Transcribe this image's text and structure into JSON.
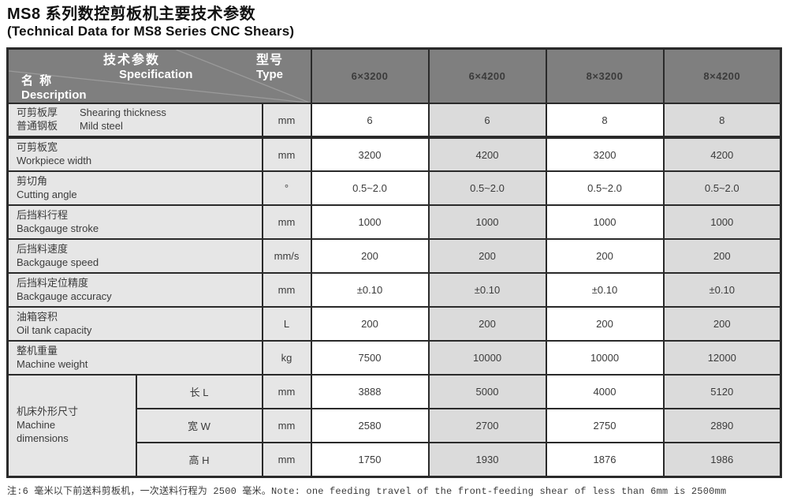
{
  "title": {
    "zh": "MS8 系列数控剪板机主要技术参数",
    "en": "(Technical Data for MS8 Series CNC Shears)"
  },
  "table": {
    "header": {
      "spec_zh": "技术参数",
      "spec_en": "Specification",
      "name_zh": "名 称",
      "name_en": "Description",
      "type_zh": "型号",
      "type_en": "Type",
      "models": [
        "6×3200",
        "6×4200",
        "8×3200",
        "8×4200"
      ]
    },
    "rows": [
      {
        "zh": "可剪板厚",
        "en": "Shearing thickness",
        "zh2": "普通钢板",
        "en2": "Mild steel",
        "unit": "mm",
        "values": [
          "6",
          "6",
          "8",
          "8"
        ]
      },
      {
        "zh": "可剪板宽",
        "en": "Workpiece width",
        "unit": "mm",
        "values": [
          "3200",
          "4200",
          "3200",
          "4200"
        ]
      },
      {
        "zh": "剪切角",
        "en": "Cutting angle",
        "unit": "°",
        "values": [
          "0.5~2.0",
          "0.5~2.0",
          "0.5~2.0",
          "0.5~2.0"
        ]
      },
      {
        "zh": "后挡料行程",
        "en": "Backgauge stroke",
        "unit": "mm",
        "values": [
          "1000",
          "1000",
          "1000",
          "1000"
        ]
      },
      {
        "zh": "后挡料速度",
        "en": "Backgauge speed",
        "unit": "mm/s",
        "values": [
          "200",
          "200",
          "200",
          "200"
        ]
      },
      {
        "zh": "后挡料定位精度",
        "en": "Backgauge accuracy",
        "unit": "mm",
        "values": [
          "±0.10",
          "±0.10",
          "±0.10",
          "±0.10"
        ]
      },
      {
        "zh": "油箱容积",
        "en": "Oil tank capacity",
        "unit": "L",
        "values": [
          "200",
          "200",
          "200",
          "200"
        ]
      },
      {
        "zh": "整机重量",
        "en": "Machine weight",
        "unit": "kg",
        "values": [
          "7500",
          "10000",
          "10000",
          "12000"
        ]
      }
    ],
    "dimensions": {
      "label_zh": "机床外形尺寸",
      "label_en_lines": [
        "Machine",
        "dimensions"
      ],
      "rows": [
        {
          "sub": "长 L",
          "unit": "mm",
          "values": [
            "3888",
            "5000",
            "4000",
            "5120"
          ]
        },
        {
          "sub": "宽 W",
          "unit": "mm",
          "values": [
            "2580",
            "2700",
            "2750",
            "2890"
          ]
        },
        {
          "sub": "高 H",
          "unit": "mm",
          "values": [
            "1750",
            "1930",
            "1876",
            "1986"
          ]
        }
      ]
    }
  },
  "footnote": "注:6 毫米以下前送料剪板机，一次送料行程为 2500 毫米。Note: one feeding travel of the front-feeding shear of less than 6mm is 2500mm",
  "colors": {
    "header_bg": "#7f7f7f",
    "label_bg": "#e6e6e6",
    "alt_col_bg": "#dbdbdb",
    "border": "#2a2a2a",
    "header_text": "#ffffff",
    "body_text": "#3b3b3b"
  }
}
